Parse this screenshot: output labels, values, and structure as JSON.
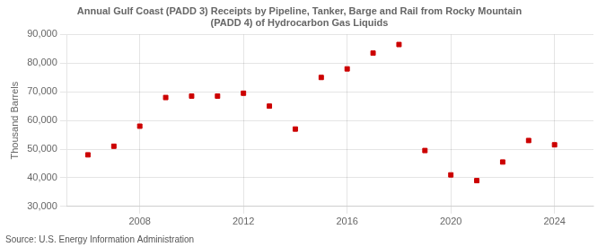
{
  "chart_data": {
    "type": "scatter",
    "title": "Annual Gulf Coast (PADD 3) Receipts by Pipeline, Tanker, Barge and Rail from Rocky Mountain\n(PADD 4) of Hydrocarbon Gas Liquids",
    "ylabel": "Thousand Barrels",
    "source": "Source: U.S. Energy Information Administration",
    "x": [
      2006,
      2007,
      2008,
      2009,
      2010,
      2011,
      2012,
      2013,
      2014,
      2015,
      2016,
      2017,
      2018,
      2019,
      2020,
      2021,
      2022,
      2023,
      2024
    ],
    "values": [
      48000,
      51000,
      58000,
      68000,
      68500,
      68500,
      69500,
      65000,
      57000,
      75000,
      78000,
      83500,
      86500,
      49500,
      41000,
      39000,
      45500,
      53000,
      51500
    ],
    "color": "#cc0000",
    "marker": "square",
    "xlim": [
      2005.2,
      2025.5
    ],
    "xticks": [
      2008,
      2012,
      2016,
      2020,
      2024
    ],
    "ylim": [
      30000,
      90000
    ],
    "yticks": [
      {
        "value": 30000,
        "label": "30,000"
      },
      {
        "value": 40000,
        "label": "40,000"
      },
      {
        "value": 50000,
        "label": "50,000"
      },
      {
        "value": 60000,
        "label": "60,000"
      },
      {
        "value": 70000,
        "label": "70,000"
      },
      {
        "value": 80000,
        "label": "80,000"
      },
      {
        "value": 90000,
        "label": "90,000"
      }
    ],
    "grid": true
  }
}
